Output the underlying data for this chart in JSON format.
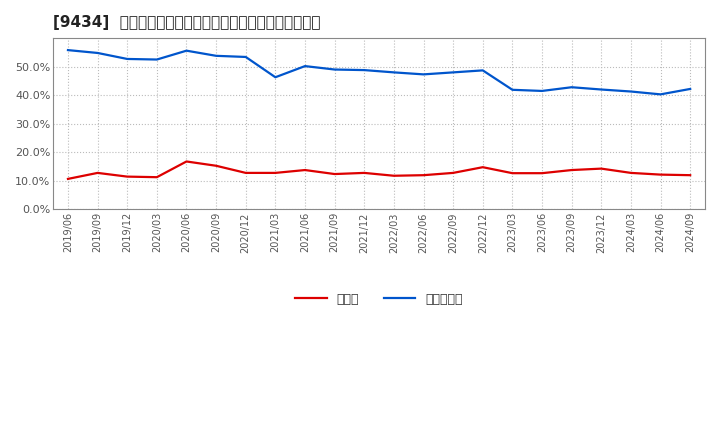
{
  "title": "[9434]  現預金、有利子負債の総資産に対する比率の推移",
  "x_labels": [
    "2019/06",
    "2019/09",
    "2019/12",
    "2020/03",
    "2020/06",
    "2020/09",
    "2020/12",
    "2021/03",
    "2021/06",
    "2021/09",
    "2021/12",
    "2022/03",
    "2022/06",
    "2022/09",
    "2022/12",
    "2023/03",
    "2023/06",
    "2023/09",
    "2023/12",
    "2024/03",
    "2024/06",
    "2024/09"
  ],
  "cash": [
    0.107,
    0.128,
    0.115,
    0.113,
    0.168,
    0.153,
    0.128,
    0.128,
    0.138,
    0.124,
    0.128,
    0.118,
    0.12,
    0.128,
    0.148,
    0.127,
    0.127,
    0.138,
    0.143,
    0.128,
    0.122,
    0.12
  ],
  "debt": [
    0.558,
    0.548,
    0.527,
    0.525,
    0.556,
    0.538,
    0.534,
    0.463,
    0.502,
    0.49,
    0.488,
    0.48,
    0.473,
    0.48,
    0.487,
    0.419,
    0.415,
    0.428,
    0.42,
    0.413,
    0.403,
    0.422
  ],
  "cash_color": "#dd0000",
  "debt_color": "#0055cc",
  "background_color": "#ffffff",
  "grid_color": "#bbbbbb",
  "legend_cash": "現預金",
  "legend_debt": "有利子負債",
  "ylim": [
    0.0,
    0.6
  ],
  "yticks": [
    0.0,
    0.1,
    0.2,
    0.3,
    0.4,
    0.5
  ],
  "title_fontsize": 11,
  "line_width": 1.6
}
